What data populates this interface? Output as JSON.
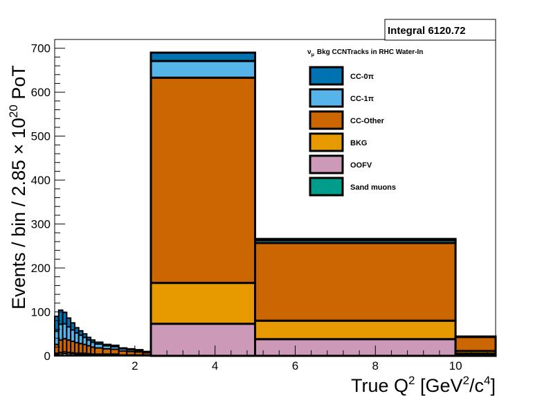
{
  "chart_data": {
    "type": "bar",
    "stacked": true,
    "title": "",
    "legend_title": "Bkg CCNTracks in RHC Water-In",
    "legend_title_symbol": "ν",
    "legend_title_sub": "μ",
    "legend_placement": "top-right",
    "stat_box": "Integral 6120.72",
    "xlabel": {
      "pre": "True Q",
      "sup1": "2",
      "mid": " [GeV",
      "sup2": "2",
      "mid2": "/c",
      "sup3": "4",
      "post": "]"
    },
    "ylabel": {
      "pre": "Events / bin / 2.85 × 10",
      "sup": "20",
      "post": " PoT"
    },
    "xlim": [
      0,
      11
    ],
    "ylim": [
      0,
      720
    ],
    "xticks": [
      2,
      4,
      6,
      8,
      10
    ],
    "yticks": [
      0,
      100,
      200,
      300,
      400,
      500,
      600,
      700
    ],
    "grid": false,
    "bins": [
      [
        0.0,
        0.1
      ],
      [
        0.1,
        0.2
      ],
      [
        0.2,
        0.3
      ],
      [
        0.3,
        0.4
      ],
      [
        0.4,
        0.5
      ],
      [
        0.5,
        0.6
      ],
      [
        0.6,
        0.7
      ],
      [
        0.7,
        0.8
      ],
      [
        0.8,
        0.9
      ],
      [
        0.9,
        1.0
      ],
      [
        1.0,
        1.2
      ],
      [
        1.2,
        1.4
      ],
      [
        1.4,
        1.6
      ],
      [
        1.6,
        1.8
      ],
      [
        1.8,
        2.0
      ],
      [
        2.0,
        2.2
      ],
      [
        2.2,
        2.4
      ],
      [
        2.4,
        5.0
      ],
      [
        5.0,
        10.0
      ],
      [
        10.0,
        11.0
      ]
    ],
    "series": [
      {
        "name": "Sand muons",
        "color": "#009e8a",
        "values": [
          0,
          0,
          0,
          0,
          0,
          0,
          0,
          0,
          0,
          0,
          0,
          0,
          0,
          0,
          0,
          0,
          0,
          0,
          0,
          0
        ]
      },
      {
        "name": "OOFV",
        "color": "#cc99b8",
        "values": [
          3,
          4,
          5,
          4,
          4,
          3,
          3,
          3,
          3,
          2,
          2,
          2,
          2,
          1,
          1,
          1,
          1,
          73,
          38,
          5
        ]
      },
      {
        "name": "BKG",
        "color": "#e69a00",
        "values": [
          3,
          4,
          4,
          4,
          3,
          3,
          3,
          3,
          2,
          2,
          2,
          2,
          2,
          1,
          1,
          1,
          1,
          93,
          42,
          6
        ]
      },
      {
        "name": "CC-Other",
        "color": "#cc6600",
        "values": [
          20,
          28,
          30,
          28,
          26,
          24,
          22,
          20,
          18,
          16,
          14,
          12,
          11,
          9,
          8,
          7,
          5,
          467,
          177,
          32
        ]
      },
      {
        "name": "CC-1π",
        "color": "#56b4e9",
        "values": [
          30,
          36,
          34,
          30,
          26,
          22,
          19,
          16,
          13,
          11,
          9,
          7,
          6,
          5,
          4,
          3,
          2,
          38,
          6,
          1
        ]
      },
      {
        "name": "CC-0π",
        "color": "#0072b2",
        "values": [
          34,
          32,
          26,
          20,
          16,
          12,
          10,
          8,
          6,
          5,
          4,
          3,
          3,
          2,
          2,
          2,
          1,
          19,
          3,
          0
        ]
      }
    ]
  }
}
